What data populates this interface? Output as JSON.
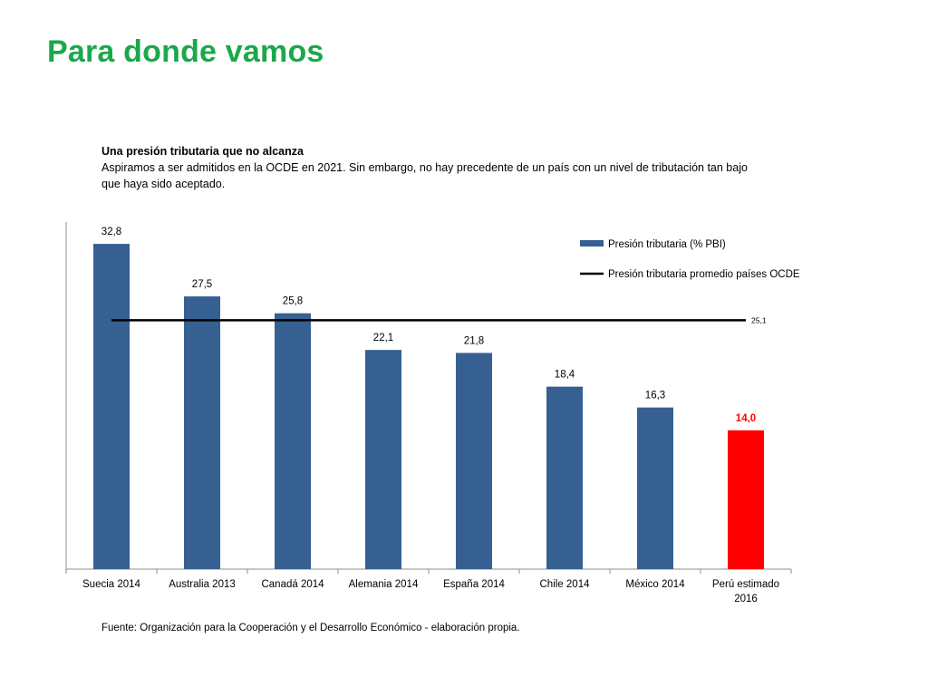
{
  "slide": {
    "title": "Para donde vamos"
  },
  "intro": {
    "heading": "Una presión tributaria que no alcanza",
    "body": "Aspiramos a ser admitidos en la OCDE en 2021. Sin embargo, no hay precedente de un país con un nivel de tributación tan bajo que haya sido aceptado."
  },
  "footer": {
    "source": "Fuente: Organización para la Cooperación y el Desarrollo Económico - elaboración propia."
  },
  "chart_data": {
    "type": "bar",
    "categories": [
      "Suecia 2014",
      "Australia 2013",
      "Canadá 2014",
      "Alemania 2014",
      "España 2014",
      "Chile 2014",
      "México 2014",
      "Perú estimado 2016"
    ],
    "series": [
      {
        "name": "Presión tributaria (% PBI)",
        "values": [
          32.8,
          27.5,
          25.8,
          22.1,
          21.8,
          18.4,
          16.3,
          14.0
        ],
        "value_labels": [
          "32,8",
          "27,5",
          "25,8",
          "22,1",
          "21,8",
          "18,4",
          "16,3",
          "14,0"
        ],
        "color": "#366092",
        "highlight": {
          "index": 7,
          "color": "#ff0000"
        }
      }
    ],
    "reference_line": {
      "name": "Presión tributaria promedio países OCDE",
      "value": 25.1,
      "label": "25,1",
      "color": "#000000"
    },
    "ylim": [
      0,
      35
    ],
    "grid": false,
    "legend_position": "top-right"
  }
}
